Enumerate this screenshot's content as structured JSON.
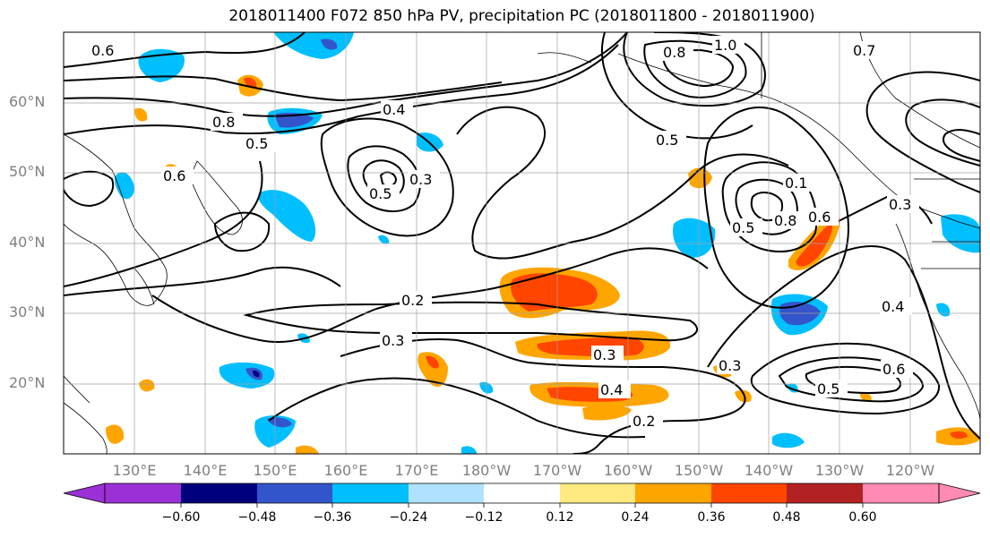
{
  "title": "2018011400 F072 850 hPa PV, precipitation PC (2018011800 - 2018011900)",
  "map": {
    "lat_labels": [
      "60°N",
      "50°N",
      "40°N",
      "30°N",
      "20°N"
    ],
    "lon_labels": [
      "130°E",
      "140°E",
      "150°E",
      "160°E",
      "170°E",
      "180°W",
      "170°W",
      "160°W",
      "150°W",
      "140°W",
      "130°W",
      "120°W"
    ],
    "contour_labels": [
      "0.6",
      "0.8",
      "0.5",
      "0.4",
      "0.3",
      "0.2",
      "0.3",
      "0.3",
      "0.4",
      "0.2",
      "0.8",
      "1.0",
      "0.5",
      "0.7",
      "0.8",
      "0.5",
      "0.6",
      "0.5",
      "0.3",
      "0.4",
      "0.6",
      "0.3",
      "0.1",
      "0.6",
      "0.5"
    ],
    "colors": {
      "land_outline": "#000000",
      "contour": "#000000",
      "grid": "#a0a0a0"
    }
  },
  "colorbar": {
    "tick_labels": [
      "−0.60",
      "−0.48",
      "−0.36",
      "−0.24",
      "−0.12",
      "0.12",
      "0.24",
      "0.36",
      "0.48",
      "0.60"
    ],
    "colors": [
      "#9b30d6",
      "#00007f",
      "#3355cc",
      "#00bfff",
      "#b0e2ff",
      "#ffffff",
      "#ffea80",
      "#ffa500",
      "#ff4500",
      "#b22222",
      "#ff8ab4"
    ]
  }
}
